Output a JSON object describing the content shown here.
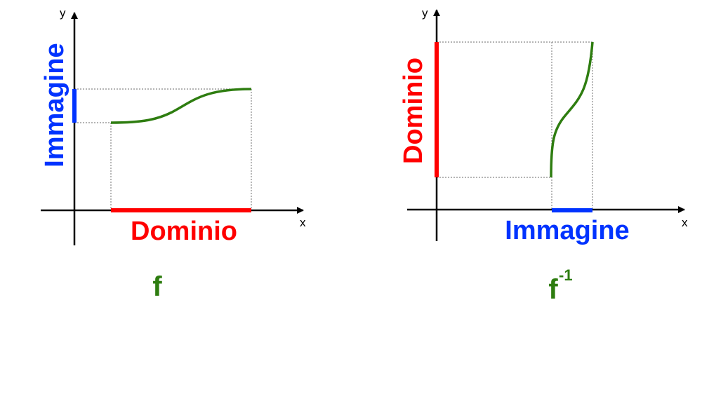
{
  "colors": {
    "domain": "#ff0000",
    "image": "#0033ff",
    "curve": "#2e7d10",
    "axis": "#000000",
    "guide": "#888888"
  },
  "left_diagram": {
    "y_axis_label": "y",
    "x_axis_label": "x",
    "vertical_label": "Immagine",
    "horizontal_label": "Dominio",
    "function_label": "f"
  },
  "right_diagram": {
    "y_axis_label": "y",
    "x_axis_label": "x",
    "vertical_label": "Dominio",
    "horizontal_label": "Immagine",
    "function_label": "f",
    "function_superscript": "-1"
  }
}
